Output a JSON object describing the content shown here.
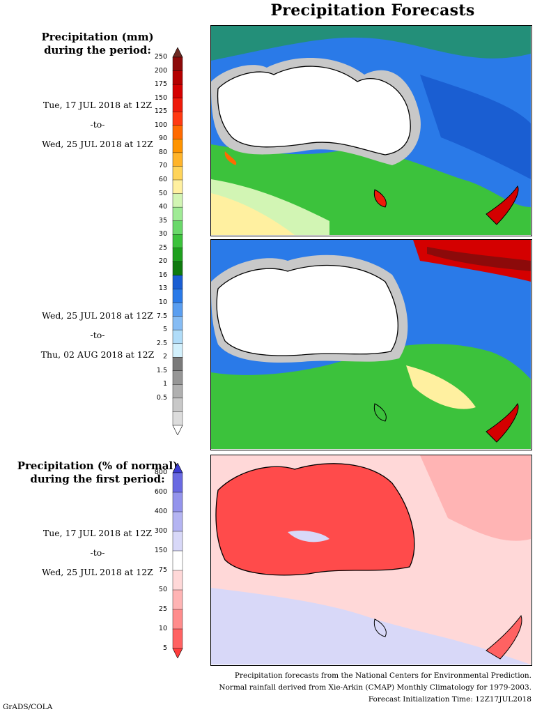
{
  "title": "Precipitation Forecasts",
  "panel1": {
    "heading_line1": "Precipitation (mm)",
    "heading_line2": "during the period:",
    "start": "Tue, 17 JUL 2018 at 12Z",
    "sep": "-to-",
    "end": "Wed, 25 JUL 2018 at 12Z"
  },
  "panel2": {
    "start": "Wed, 25 JUL 2018 at 12Z",
    "sep": "-to-",
    "end": "Thu, 02 AUG 2018 at 12Z"
  },
  "panel3": {
    "heading_line1": "Precipitation (% of normal)",
    "heading_line2": "during the first period:",
    "start": "Tue, 17 JUL 2018 at 12Z",
    "sep": "-to-",
    "end": "Wed, 25 JUL 2018 at 12Z"
  },
  "scale_mm": {
    "ticks": [
      "250",
      "200",
      "175",
      "150",
      "125",
      "100",
      "90",
      "80",
      "70",
      "60",
      "50",
      "40",
      "35",
      "30",
      "25",
      "20",
      "16",
      "13",
      "10",
      "7.5",
      "5",
      "2.5",
      "2",
      "1.5",
      "1",
      "0.5"
    ],
    "colors": [
      "#6e2a22",
      "#8c0a0a",
      "#b40000",
      "#d40000",
      "#ee1a0a",
      "#ff3a12",
      "#ff6a00",
      "#ff9400",
      "#ffb42a",
      "#ffd45a",
      "#fff0a0",
      "#d2f5b4",
      "#a0eb96",
      "#6ad86a",
      "#3cc23c",
      "#1ea01e",
      "#0f7a0f",
      "#1a5ed2",
      "#2a7ae8",
      "#5a9ef0",
      "#86bcf4",
      "#b0dcf8",
      "#d2f0fc",
      "#7a7a7a",
      "#969696",
      "#b0b0b0",
      "#c8c8c8",
      "#dcdcdc",
      "#ffffff"
    ]
  },
  "scale_pct": {
    "ticks": [
      "800",
      "600",
      "400",
      "300",
      "150",
      "75",
      "50",
      "25",
      "10",
      "5"
    ],
    "colors": [
      "#3c3cd2",
      "#6a6ae2",
      "#9494ec",
      "#b4b4f2",
      "#d8d8f8",
      "#ffffff",
      "#ffd8d8",
      "#ffb4b4",
      "#ff8c8c",
      "#ff6262",
      "#ff3c3c"
    ]
  },
  "footer": {
    "line1": "Precipitation forecasts from the National Centers for Environmental Prediction.",
    "line2": "Normal rainfall derived from Xie-Arkin (CMAP) Monthly Climatology for 1979-2003.",
    "line3": "Forecast Initialization Time: 12Z17JUL2018"
  },
  "credit": "GrADS/COLA"
}
